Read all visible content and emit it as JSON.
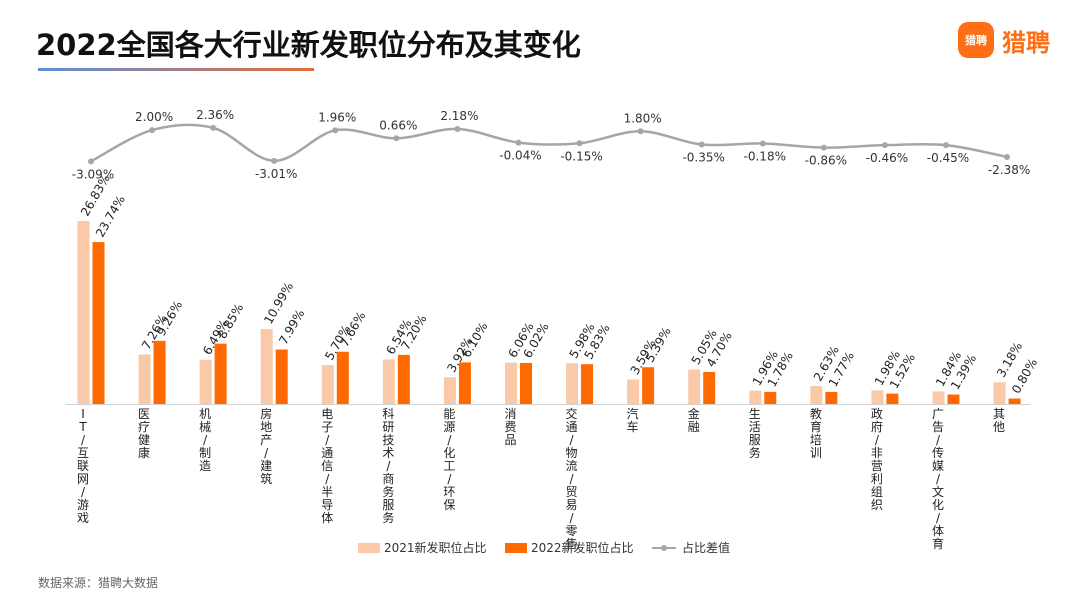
{
  "header": {
    "title": "2022全国各大行业新发职位分布及其变化",
    "logo_mark": "猎聘",
    "logo_text": "猎聘"
  },
  "footer": {
    "source": "数据来源：猎聘大数据"
  },
  "chart_data": {
    "type": "bar",
    "title": "2022全国各大行业新发职位分布及其变化",
    "categories": [
      "IT/互联网/游戏",
      "医疗健康",
      "机械/制造",
      "房地产/建筑",
      "电子/通信/半导体",
      "科研技术/商务服务",
      "能源/化工/环保",
      "消费品",
      "交通/物流/贸易/零售",
      "汽车",
      "金融",
      "生活服务",
      "教育培训",
      "政府/非营利组织",
      "广告/传媒/文化/体育",
      "其他"
    ],
    "series": [
      {
        "name": "2021新发职位占比",
        "color": "#f9c9a8",
        "values": [
          26.83,
          7.26,
          6.49,
          10.99,
          5.7,
          6.54,
          3.92,
          6.06,
          5.98,
          3.59,
          5.05,
          1.96,
          2.63,
          1.98,
          1.84,
          3.18
        ],
        "labels": [
          "26.83%",
          "7.26%",
          "6.49%",
          "10.99%",
          "5.70%",
          "6.54%",
          "3.92%",
          "6.06%",
          "5.98%",
          "3.59%",
          "5.05%",
          "1.96%",
          "2.63%",
          "1.98%",
          "1.84%",
          "3.18%"
        ]
      },
      {
        "name": "2022新发职位占比",
        "color": "#ff6a00",
        "values": [
          23.74,
          9.26,
          8.85,
          7.99,
          7.66,
          7.2,
          6.1,
          6.02,
          5.83,
          5.39,
          4.7,
          1.78,
          1.77,
          1.52,
          1.39,
          0.8
        ],
        "labels": [
          "23.74%",
          "9.26%",
          "8.85%",
          "7.99%",
          "7.66%",
          "7.20%",
          "6.10%",
          "6.02%",
          "5.83%",
          "5.39%",
          "4.70%",
          "1.78%",
          "1.77%",
          "1.52%",
          "1.39%",
          "0.80%"
        ]
      },
      {
        "name": "占比差值",
        "type": "line",
        "color": "#a6a6a6",
        "values": [
          -3.09,
          2.0,
          2.36,
          -3.01,
          1.96,
          0.66,
          2.18,
          -0.04,
          -0.15,
          1.8,
          -0.35,
          -0.18,
          -0.86,
          -0.46,
          -0.45,
          -2.38
        ],
        "labels": [
          "-3.09%",
          "2.00%",
          "2.36%",
          "-3.01%",
          "1.96%",
          "0.66%",
          "2.18%",
          "-0.04%",
          "-0.15%",
          "1.80%",
          "-0.35%",
          "-0.18%",
          "-0.86%",
          "-0.46%",
          "-0.45%",
          "-2.38%"
        ]
      }
    ],
    "ylim": [
      0,
      27
    ],
    "line_ylim": [
      -3.2,
      2.5
    ],
    "grid": false,
    "legend_position": "bottom-center"
  }
}
